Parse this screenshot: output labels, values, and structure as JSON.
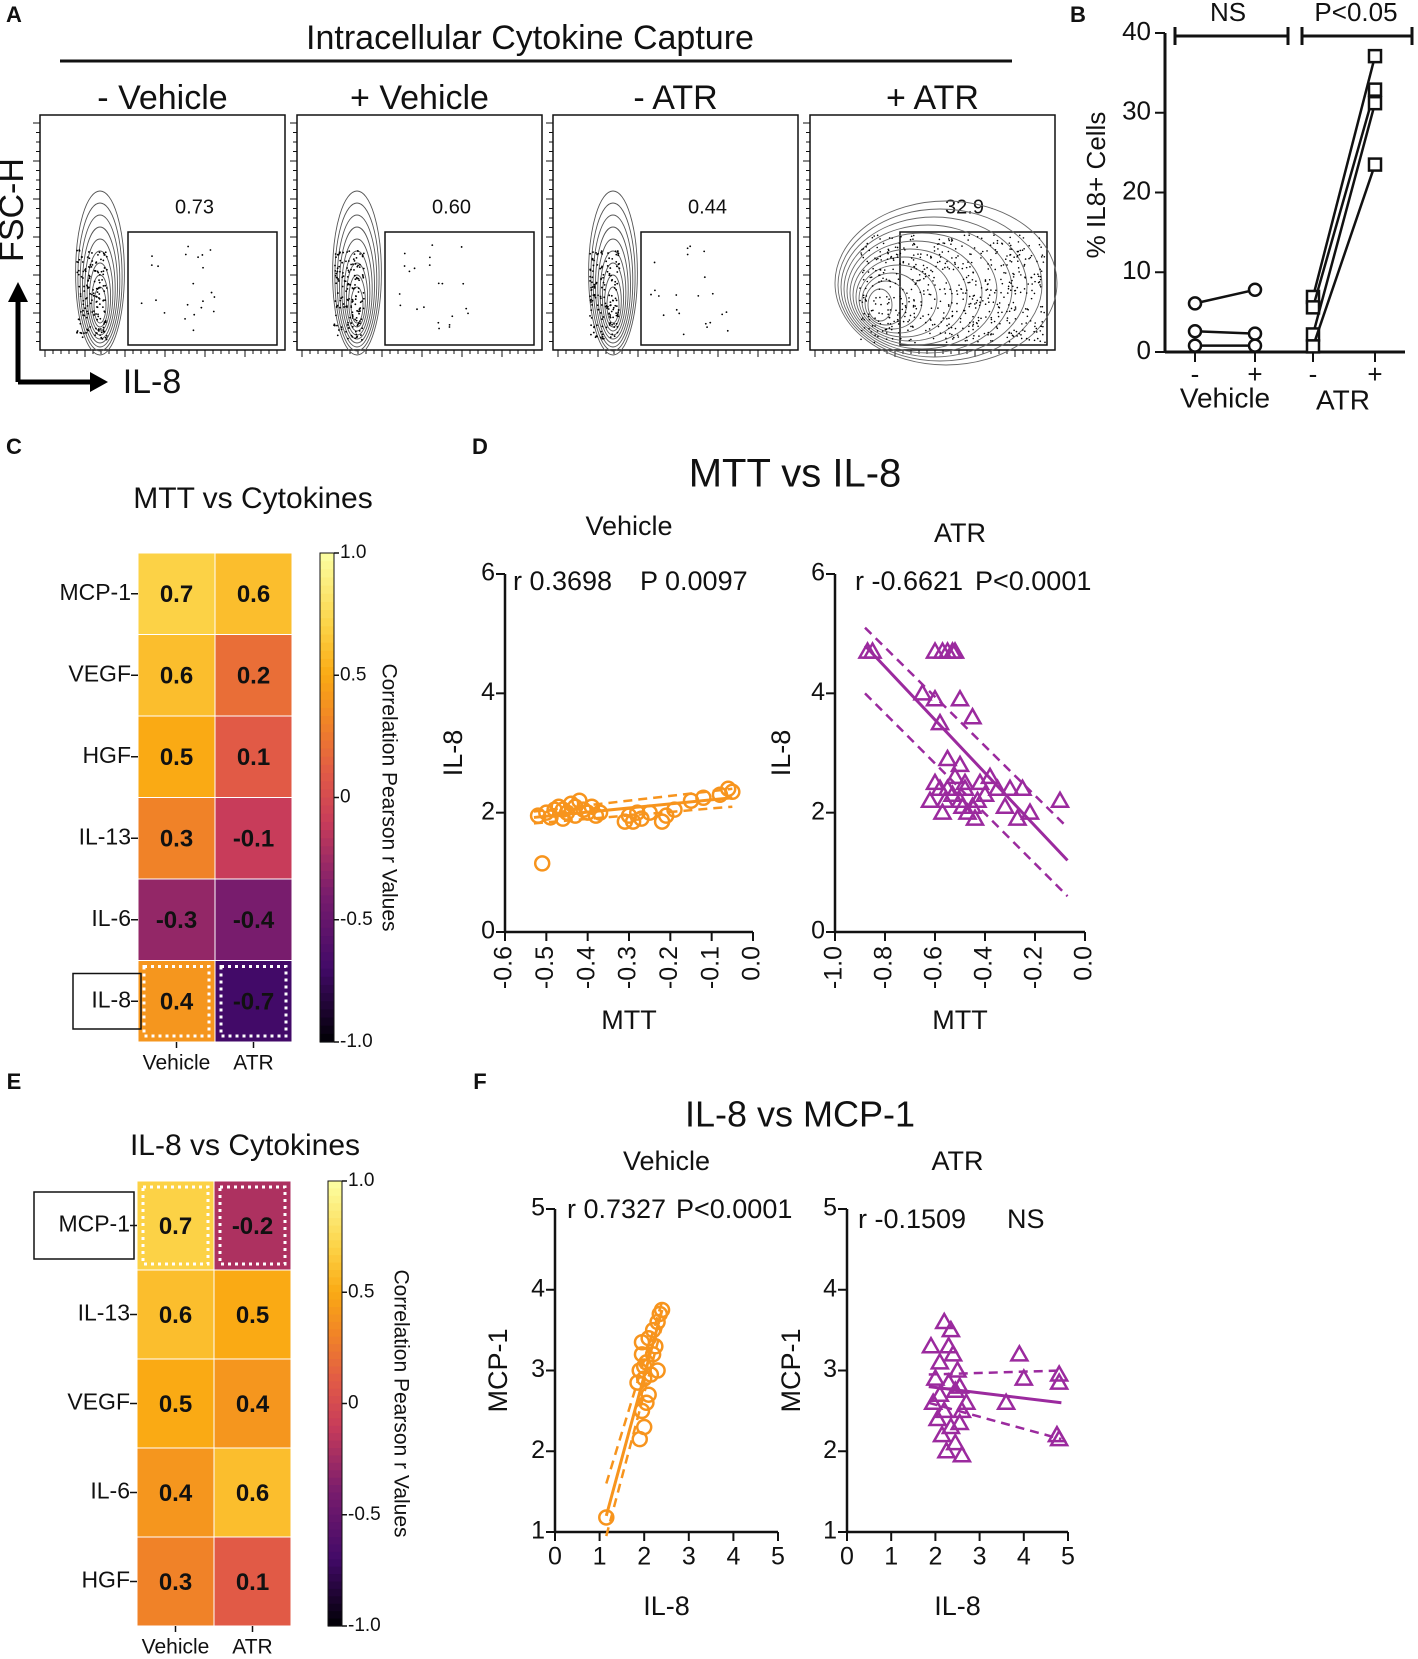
{
  "panel_letters": [
    "A",
    "B",
    "C",
    "D",
    "E",
    "F"
  ],
  "chart_data": [
    {
      "id": "A",
      "type": "scatter",
      "subtype": "flow-cytometry-contour",
      "title": "Intracellular Cytokine Capture",
      "ylabel": "FSC-H",
      "xlabel": "IL-8",
      "plots": [
        {
          "label": "- Vehicle",
          "gate_value": "0.73"
        },
        {
          "label": "+ Vehicle",
          "gate_value": "0.60"
        },
        {
          "label": "- ATR",
          "gate_value": "0.44"
        },
        {
          "label": "+ ATR",
          "gate_value": "32.9"
        }
      ]
    },
    {
      "id": "B",
      "type": "line",
      "ylabel": "% IL8+ Cells",
      "ylim": [
        0,
        40
      ],
      "yticks": [
        "0",
        "10",
        "20",
        "30",
        "40"
      ],
      "xtick_labels": [
        "-",
        "+",
        "-",
        "+"
      ],
      "group_labels": [
        "Vehicle",
        "ATR"
      ],
      "significance": [
        "NS",
        "P<0.05"
      ],
      "series": [
        {
          "name": "Vehicle",
          "marker": "circle",
          "pairs": [
            [
              6.1,
              7.8
            ],
            [
              2.6,
              2.3
            ],
            [
              0.8,
              0.8
            ]
          ]
        },
        {
          "name": "ATR",
          "marker": "square",
          "pairs": [
            [
              6.9,
              37.1
            ],
            [
              5.6,
              32.9
            ],
            [
              2.2,
              31.2
            ],
            [
              0.7,
              23.5
            ]
          ]
        }
      ]
    },
    {
      "id": "C",
      "type": "heatmap",
      "title": "MTT vs Cytokines",
      "rows": [
        "MCP-1",
        "VEGF",
        "HGF",
        "IL-13",
        "IL-6",
        "IL-8"
      ],
      "columns": [
        "Vehicle",
        "ATR"
      ],
      "values": [
        [
          0.7,
          0.6
        ],
        [
          0.6,
          0.2
        ],
        [
          0.5,
          0.1
        ],
        [
          0.3,
          -0.1
        ],
        [
          -0.3,
          -0.4
        ],
        [
          0.4,
          -0.7
        ]
      ],
      "value_labels": [
        [
          "0.7",
          "0.6"
        ],
        [
          "0.6",
          "0.2"
        ],
        [
          "0.5",
          "0.1"
        ],
        [
          "0.3",
          "-0.1"
        ],
        [
          "-0.3",
          "-0.4"
        ],
        [
          "0.4",
          "-0.7"
        ]
      ],
      "highlighted_row": "IL-8",
      "colorbar_label": "Correlation Pearson r Values",
      "colorbar_ticks": [
        "1.0",
        "0.5",
        "0",
        "-0.5",
        "-1.0"
      ],
      "clim": [
        -1.0,
        1.0
      ]
    },
    {
      "id": "D",
      "type": "scatter",
      "title": "MTT vs IL-8",
      "subplots": [
        {
          "title": "Vehicle",
          "xlabel": "MTT",
          "ylabel": "IL-8",
          "xlim": [
            -0.6,
            0.0
          ],
          "ylim": [
            0,
            6
          ],
          "xticks": [
            "-0.6",
            "-0.5",
            "-0.4",
            "-0.3",
            "-0.2",
            "-0.1",
            "0.0"
          ],
          "yticks": [
            "0",
            "2",
            "4",
            "6"
          ],
          "stat_r": "r 0.3698",
          "stat_p": "P 0.0097",
          "color": "#f7941d",
          "marker": "circle",
          "points": [
            [
              -0.51,
              1.15
            ],
            [
              -0.52,
              1.95
            ],
            [
              -0.5,
              2.0
            ],
            [
              -0.49,
              1.92
            ],
            [
              -0.48,
              2.05
            ],
            [
              -0.47,
              2.1
            ],
            [
              -0.46,
              2.05
            ],
            [
              -0.45,
              2.0
            ],
            [
              -0.44,
              2.15
            ],
            [
              -0.43,
              2.1
            ],
            [
              -0.42,
              2.2
            ],
            [
              -0.41,
              2.05
            ],
            [
              -0.4,
              2.0
            ],
            [
              -0.39,
              2.1
            ],
            [
              -0.38,
              1.95
            ],
            [
              -0.37,
              2.0
            ],
            [
              -0.31,
              1.85
            ],
            [
              -0.3,
              1.95
            ],
            [
              -0.29,
              1.85
            ],
            [
              -0.28,
              2.0
            ],
            [
              -0.27,
              1.9
            ],
            [
              -0.25,
              2.0
            ],
            [
              -0.22,
              1.85
            ],
            [
              -0.21,
              1.95
            ],
            [
              -0.19,
              2.05
            ],
            [
              -0.15,
              2.2
            ],
            [
              -0.12,
              2.25
            ],
            [
              -0.08,
              2.3
            ],
            [
              -0.06,
              2.4
            ],
            [
              -0.05,
              2.35
            ],
            [
              -0.46,
              1.9
            ],
            [
              -0.43,
              1.95
            ]
          ],
          "fit": {
            "x0": -0.53,
            "x1": -0.05,
            "y0": 1.92,
            "y1": 2.25
          },
          "ci_upper": {
            "x0": -0.53,
            "x1": -0.05,
            "y0": 2.02,
            "y1": 2.4
          },
          "ci_lower": {
            "x0": -0.53,
            "x1": -0.05,
            "y0": 1.82,
            "y1": 2.1
          }
        },
        {
          "title": "ATR",
          "xlabel": "MTT",
          "ylabel": "IL-8",
          "xlim": [
            -1.0,
            0.0
          ],
          "ylim": [
            0,
            6
          ],
          "xticks": [
            "-1.0",
            "-0.8",
            "-0.6",
            "-0.4",
            "-0.2",
            "0.0"
          ],
          "yticks": [
            "0",
            "2",
            "4",
            "6"
          ],
          "stat_r": "r -0.6621",
          "stat_p": "P<0.0001",
          "color": "#9b2a9e",
          "marker": "triangle",
          "points": [
            [
              -0.87,
              4.7
            ],
            [
              -0.85,
              4.7
            ],
            [
              -0.6,
              4.7
            ],
            [
              -0.57,
              4.7
            ],
            [
              -0.55,
              4.7
            ],
            [
              -0.53,
              4.7
            ],
            [
              -0.52,
              4.7
            ],
            [
              -0.65,
              4.0
            ],
            [
              -0.6,
              3.9
            ],
            [
              -0.58,
              3.5
            ],
            [
              -0.5,
              3.9
            ],
            [
              -0.45,
              3.6
            ],
            [
              -0.55,
              2.9
            ],
            [
              -0.52,
              2.6
            ],
            [
              -0.5,
              2.8
            ],
            [
              -0.48,
              2.5
            ],
            [
              -0.6,
              2.5
            ],
            [
              -0.58,
              2.4
            ],
            [
              -0.56,
              2.2
            ],
            [
              -0.55,
              2.4
            ],
            [
              -0.53,
              2.3
            ],
            [
              -0.5,
              2.2
            ],
            [
              -0.49,
              2.1
            ],
            [
              -0.47,
              2.0
            ],
            [
              -0.45,
              2.1
            ],
            [
              -0.43,
              2.2
            ],
            [
              -0.42,
              2.5
            ],
            [
              -0.4,
              2.3
            ],
            [
              -0.38,
              2.6
            ],
            [
              -0.35,
              2.4
            ],
            [
              -0.32,
              2.1
            ],
            [
              -0.3,
              2.4
            ],
            [
              -0.27,
              1.9
            ],
            [
              -0.25,
              2.4
            ],
            [
              -0.22,
              2.0
            ],
            [
              -0.1,
              2.2
            ],
            [
              -0.62,
              2.2
            ],
            [
              -0.57,
              2.0
            ],
            [
              -0.48,
              2.4
            ],
            [
              -0.44,
              1.9
            ]
          ],
          "fit": {
            "x0": -0.88,
            "x1": -0.07,
            "y0": 4.8,
            "y1": 1.2
          },
          "ci_upper": {
            "x0": -0.88,
            "x1": -0.07,
            "y0": 5.1,
            "y1": 1.75
          },
          "ci_lower": {
            "x0": -0.88,
            "x1": -0.07,
            "y0": 4.0,
            "y1": 0.6
          }
        }
      ]
    },
    {
      "id": "E",
      "type": "heatmap",
      "title": "IL-8 vs Cytokines",
      "rows": [
        "MCP-1",
        "IL-13",
        "VEGF",
        "IL-6",
        "HGF"
      ],
      "columns": [
        "Vehicle",
        "ATR"
      ],
      "values": [
        [
          0.7,
          -0.2
        ],
        [
          0.6,
          0.5
        ],
        [
          0.5,
          0.4
        ],
        [
          0.4,
          0.6
        ],
        [
          0.3,
          0.1
        ]
      ],
      "value_labels": [
        [
          "0.7",
          "-0.2"
        ],
        [
          "0.6",
          "0.5"
        ],
        [
          "0.5",
          "0.4"
        ],
        [
          "0.4",
          "0.6"
        ],
        [
          "0.3",
          "0.1"
        ]
      ],
      "highlighted_row": "MCP-1",
      "colorbar_label": "Correlation Pearson r Values",
      "colorbar_ticks": [
        "1.0",
        "0.5",
        "0",
        "-0.5",
        "-1.0"
      ],
      "clim": [
        -1.0,
        1.0
      ]
    },
    {
      "id": "F",
      "type": "scatter",
      "title": "IL-8 vs MCP-1",
      "subplots": [
        {
          "title": "Vehicle",
          "xlabel": "IL-8",
          "ylabel": "MCP-1",
          "xlim": [
            0,
            5
          ],
          "ylim": [
            1,
            5
          ],
          "xticks": [
            "0",
            "1",
            "2",
            "3",
            "4",
            "5"
          ],
          "yticks": [
            "1",
            "2",
            "3",
            "4",
            "5"
          ],
          "stat_r": "r 0.7327",
          "stat_p": "P<0.0001",
          "color": "#f7941d",
          "marker": "circle",
          "points": [
            [
              1.15,
              1.18
            ],
            [
              1.9,
              2.15
            ],
            [
              2.0,
              2.3
            ],
            [
              1.95,
              2.5
            ],
            [
              2.1,
              2.7
            ],
            [
              2.0,
              2.9
            ],
            [
              1.9,
              3.0
            ],
            [
              2.05,
              3.1
            ],
            [
              2.2,
              3.2
            ],
            [
              1.95,
              3.35
            ],
            [
              2.1,
              3.4
            ],
            [
              2.2,
              3.5
            ],
            [
              2.3,
              3.6
            ],
            [
              2.35,
              3.7
            ],
            [
              2.4,
              3.75
            ],
            [
              2.0,
              3.05
            ],
            [
              2.15,
              2.95
            ],
            [
              1.85,
              2.85
            ],
            [
              2.25,
              3.3
            ],
            [
              2.05,
              2.6
            ],
            [
              1.95,
              3.2
            ],
            [
              2.3,
              3.0
            ]
          ],
          "fit": {
            "x0": 1.15,
            "x1": 2.4,
            "y0": 1.2,
            "y1": 3.75
          },
          "ci_upper": {
            "x0": 1.15,
            "x1": 2.4,
            "y0": 1.6,
            "y1": 3.85
          },
          "ci_lower": {
            "x0": 1.15,
            "x1": 2.4,
            "y0": 0.95,
            "y1": 3.55
          }
        },
        {
          "title": "ATR",
          "xlabel": "IL-8",
          "ylabel": "MCP-1",
          "xlim": [
            0,
            5
          ],
          "ylim": [
            1,
            5
          ],
          "xticks": [
            "0",
            "1",
            "2",
            "3",
            "4",
            "5"
          ],
          "yticks": [
            "1",
            "2",
            "3",
            "4",
            "5"
          ],
          "stat_r": "r -0.1509",
          "stat_p": "NS",
          "color": "#9b2a9e",
          "marker": "triangle",
          "points": [
            [
              1.9,
              3.3
            ],
            [
              2.0,
              2.9
            ],
            [
              2.1,
              3.1
            ],
            [
              2.2,
              3.6
            ],
            [
              2.3,
              3.3
            ],
            [
              2.35,
              3.5
            ],
            [
              2.4,
              3.2
            ],
            [
              2.5,
              3.0
            ],
            [
              2.55,
              2.8
            ],
            [
              2.6,
              2.5
            ],
            [
              2.7,
              2.6
            ],
            [
              1.95,
              2.6
            ],
            [
              2.05,
              2.4
            ],
            [
              2.15,
              2.2
            ],
            [
              2.25,
              2.0
            ],
            [
              2.35,
              2.3
            ],
            [
              2.45,
              2.1
            ],
            [
              2.55,
              2.35
            ],
            [
              2.6,
              1.95
            ],
            [
              2.1,
              2.7
            ],
            [
              2.3,
              2.85
            ],
            [
              3.6,
              2.6
            ],
            [
              3.9,
              3.2
            ],
            [
              4.0,
              2.9
            ],
            [
              4.8,
              2.95
            ],
            [
              4.8,
              2.85
            ],
            [
              4.75,
              2.2
            ],
            [
              4.8,
              2.15
            ],
            [
              2.2,
              2.5
            ],
            [
              2.45,
              2.75
            ]
          ],
          "fit": {
            "x0": 1.85,
            "x1": 4.85,
            "y0": 2.8,
            "y1": 2.6
          },
          "ci_upper": {
            "x0": 1.85,
            "x1": 4.85,
            "y0": 2.95,
            "y1": 3.0
          },
          "ci_lower": {
            "x0": 1.85,
            "x1": 4.85,
            "y0": 2.6,
            "y1": 2.15
          }
        }
      ]
    }
  ]
}
